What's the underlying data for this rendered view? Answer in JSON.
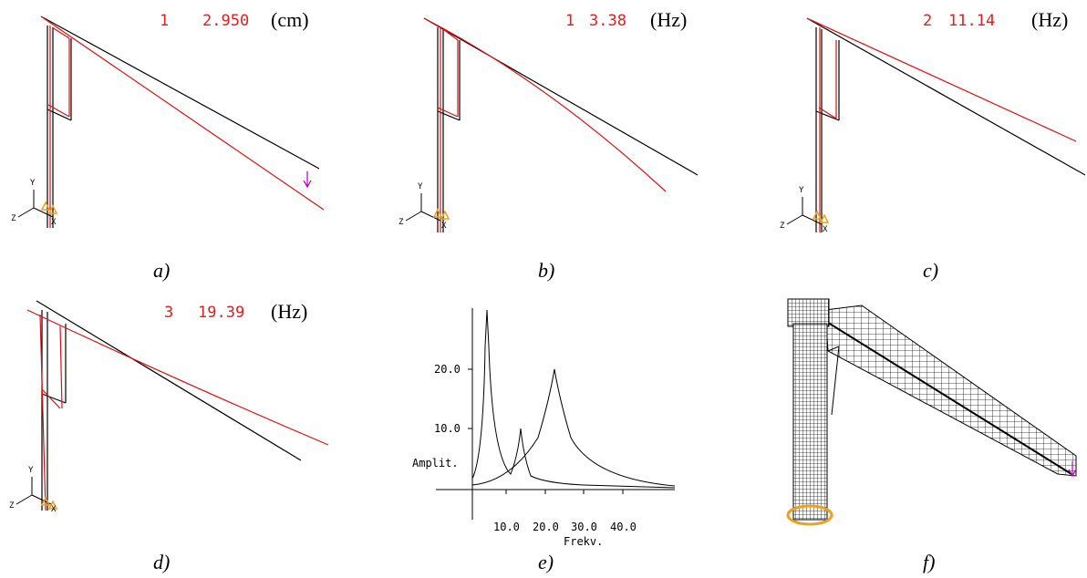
{
  "axes": {
    "y": "Y",
    "z": "Z",
    "x": "X"
  },
  "panels": [
    {
      "mode": "1",
      "value": "2.950",
      "unit": "(cm)",
      "caption": "a)"
    },
    {
      "mode": "1",
      "value": "3.38",
      "unit": "(Hz)",
      "caption": "b)"
    },
    {
      "mode": "2",
      "value": "11.14",
      "unit": "(Hz)",
      "caption": "c)"
    },
    {
      "mode": "3",
      "value": "19.39",
      "unit": "(Hz)",
      "caption": "d)"
    },
    {
      "caption": "e)",
      "y_label": "Amplit.",
      "y_ticks": [
        "20.0",
        "10.0"
      ],
      "x_label": "Frekv.",
      "x_ticks": [
        "10.0",
        "20.0",
        "30.0",
        "40.0"
      ]
    },
    {
      "caption": "f)"
    }
  ]
}
